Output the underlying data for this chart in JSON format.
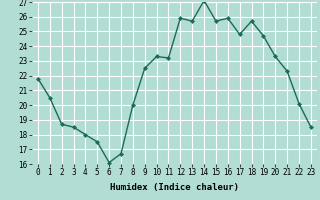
{
  "x": [
    0,
    1,
    2,
    3,
    4,
    5,
    6,
    7,
    8,
    9,
    10,
    11,
    12,
    13,
    14,
    15,
    16,
    17,
    18,
    19,
    20,
    21,
    22,
    23
  ],
  "y": [
    21.8,
    20.5,
    18.7,
    18.5,
    18.0,
    17.5,
    16.1,
    16.7,
    20.0,
    22.5,
    23.3,
    23.2,
    25.9,
    25.7,
    27.1,
    25.7,
    25.9,
    24.8,
    25.7,
    24.7,
    23.3,
    22.3,
    20.1,
    18.5
  ],
  "line_color": "#1a6b5a",
  "marker": "D",
  "marker_size": 2.0,
  "bg_color": "#b2ddd4",
  "grid_color": "#ffffff",
  "xlabel": "Humidex (Indice chaleur)",
  "ylim": [
    16,
    27
  ],
  "xlim": [
    -0.5,
    23.5
  ],
  "yticks": [
    16,
    17,
    18,
    19,
    20,
    21,
    22,
    23,
    24,
    25,
    26,
    27
  ],
  "xticks": [
    0,
    1,
    2,
    3,
    4,
    5,
    6,
    7,
    8,
    9,
    10,
    11,
    12,
    13,
    14,
    15,
    16,
    17,
    18,
    19,
    20,
    21,
    22,
    23
  ],
  "xtick_labels": [
    "0",
    "1",
    "2",
    "3",
    "4",
    "5",
    "6",
    "7",
    "8",
    "9",
    "10",
    "11",
    "12",
    "13",
    "14",
    "15",
    "16",
    "17",
    "18",
    "19",
    "20",
    "21",
    "22",
    "23"
  ],
  "label_fontsize": 6.5,
  "tick_fontsize": 5.5,
  "linewidth": 1.0
}
